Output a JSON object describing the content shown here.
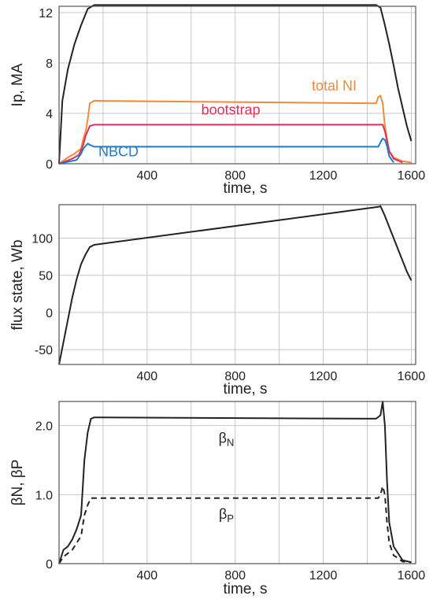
{
  "chart_data": [
    {
      "type": "line",
      "title": "",
      "xlabel": "time, s",
      "ylabel": "Ip, MA",
      "xlim": [
        0,
        1620
      ],
      "ylim": [
        0,
        12.5
      ],
      "xticks": [
        "400",
        "800",
        "1200",
        "1600"
      ],
      "yticks": [
        "0",
        "4",
        "8",
        "12"
      ],
      "grid": true,
      "series": [
        {
          "name": "",
          "color": "#222222",
          "x": [
            0,
            15,
            40,
            70,
            100,
            130,
            160,
            1440,
            1460,
            1480,
            1500,
            1520,
            1540,
            1560,
            1580,
            1600
          ],
          "y": [
            0,
            5,
            7.5,
            9.5,
            11,
            12.3,
            12.6,
            12.6,
            12.4,
            11,
            9.5,
            7.8,
            6,
            4.5,
            3,
            1.8
          ]
        },
        {
          "name": "total NI",
          "color": "#f08a3a",
          "x": [
            0,
            40,
            70,
            100,
            110,
            120,
            130,
            140,
            160,
            1440,
            1450,
            1460,
            1470,
            1480,
            1500,
            1520,
            1560,
            1600
          ],
          "y": [
            0,
            0.5,
            0.8,
            1.2,
            2,
            2.5,
            3.5,
            4.8,
            5.0,
            4.8,
            5.3,
            5.4,
            4.8,
            3,
            1,
            0.5,
            0.2,
            0.1
          ]
        },
        {
          "name": "bootstrap",
          "color": "#e0305a",
          "x": [
            0,
            60,
            90,
            110,
            120,
            130,
            140,
            160,
            1470,
            1480,
            1490,
            1500,
            1520,
            1560
          ],
          "y": [
            0,
            0.4,
            0.7,
            1.5,
            2.2,
            2.6,
            3.0,
            3.1,
            3.1,
            2.6,
            1.8,
            1.0,
            0.4,
            0.1
          ]
        },
        {
          "name": "NBCD",
          "color": "#1f7ad0",
          "x": [
            0,
            80,
            100,
            110,
            120,
            130,
            140,
            160,
            1450,
            1460,
            1470,
            1480,
            1490,
            1500,
            1520
          ],
          "y": [
            0,
            0.3,
            0.8,
            1.2,
            1.4,
            1.6,
            1.5,
            1.35,
            1.35,
            1.7,
            2.0,
            1.9,
            1.4,
            0.6,
            0.1
          ]
        }
      ],
      "annotations": [
        {
          "text": "total NI",
          "x": 1250,
          "y": 5.8,
          "color": "#f08a3a"
        },
        {
          "text": "bootstrap",
          "x": 780,
          "y": 3.9,
          "color": "#e0305a"
        },
        {
          "text": "NBCD",
          "x": 270,
          "y": 0.6,
          "color": "#1f7ad0"
        }
      ]
    },
    {
      "type": "line",
      "title": "",
      "xlabel": "time, s",
      "ylabel": "flux state, Wb",
      "xlim": [
        0,
        1620
      ],
      "ylim": [
        -70,
        145
      ],
      "xticks": [
        "400",
        "800",
        "1200",
        "1600"
      ],
      "yticks": [
        "-50",
        "0",
        "50",
        "100"
      ],
      "grid": true,
      "series": [
        {
          "name": "",
          "color": "#222222",
          "x": [
            0,
            20,
            40,
            60,
            80,
            100,
            120,
            140,
            160,
            1450,
            1460,
            1480,
            1500,
            1520,
            1540,
            1560,
            1580,
            1600
          ],
          "y": [
            -70,
            -40,
            -10,
            20,
            45,
            65,
            78,
            88,
            91,
            142,
            143,
            130,
            115,
            100,
            85,
            70,
            55,
            43
          ]
        }
      ]
    },
    {
      "type": "line",
      "title": "",
      "xlabel": "time, s",
      "ylabel": "βN, βP",
      "xlim": [
        0,
        1620
      ],
      "ylim": [
        0,
        2.35
      ],
      "xticks": [
        "400",
        "800",
        "1200",
        "1600"
      ],
      "yticks": [
        "0",
        "1.0",
        "2.0"
      ],
      "grid": true,
      "series": [
        {
          "name": "βN",
          "style": "solid",
          "color": "#222222",
          "x": [
            0,
            20,
            40,
            60,
            80,
            100,
            115,
            130,
            145,
            160,
            1440,
            1460,
            1470,
            1480,
            1490,
            1500,
            1520,
            1540,
            1560,
            1600
          ],
          "y": [
            0,
            0.2,
            0.25,
            0.35,
            0.5,
            0.7,
            1.5,
            1.9,
            2.1,
            2.12,
            2.1,
            2.15,
            2.35,
            2.0,
            1.2,
            0.6,
            0.25,
            0.15,
            0.05,
            0.02
          ]
        },
        {
          "name": "βP",
          "style": "dashed",
          "color": "#222222",
          "x": [
            0,
            20,
            40,
            60,
            80,
            100,
            115,
            130,
            145,
            160,
            1450,
            1460,
            1470,
            1480,
            1490,
            1500,
            1520,
            1540,
            1560,
            1600
          ],
          "y": [
            0,
            0.1,
            0.15,
            0.2,
            0.3,
            0.4,
            0.7,
            0.85,
            0.95,
            0.95,
            0.95,
            1.0,
            1.12,
            1.0,
            0.6,
            0.3,
            0.12,
            0.08,
            0.03,
            0.02
          ]
        }
      ],
      "annotations": [
        {
          "text": "β",
          "sub": "N",
          "x": 760,
          "y": 1.75,
          "color": "#222222"
        },
        {
          "text": "β",
          "sub": "P",
          "x": 760,
          "y": 0.65,
          "color": "#222222"
        }
      ]
    }
  ]
}
